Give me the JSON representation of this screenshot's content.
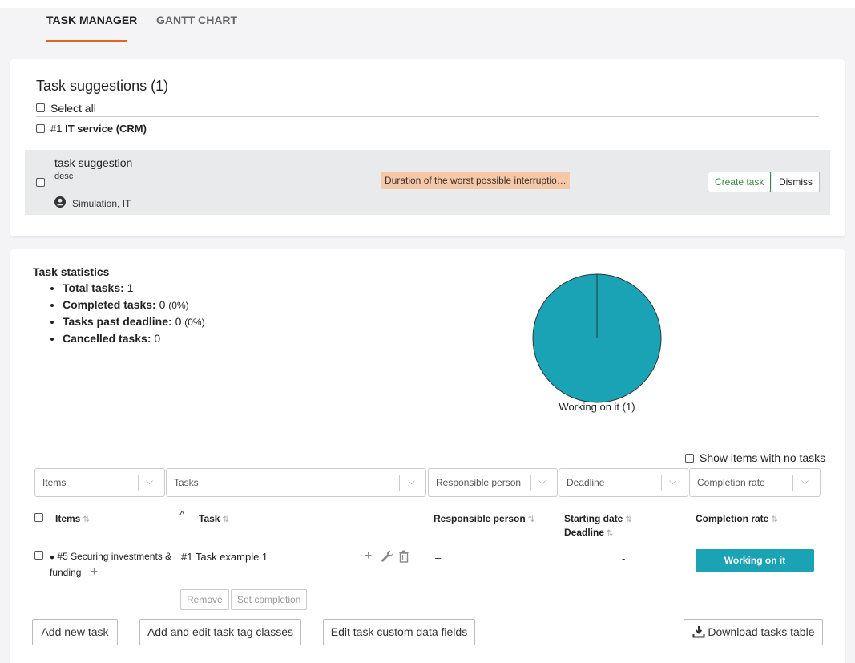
{
  "tabs": [
    {
      "label": "TASK MANAGER"
    },
    {
      "label": "GANTT CHART"
    }
  ],
  "suggestions": {
    "title": "Task suggestions (1)",
    "select_all": "Select all",
    "group_prefix": "#1",
    "group_name": "IT service (CRM)",
    "item": {
      "title": "task suggestion",
      "desc": "desc",
      "people": "Simulation, IT",
      "tag": "Duration of the worst possible interruptio…",
      "create_label": "Create task",
      "dismiss_label": "Dismiss"
    }
  },
  "stats": {
    "title": "Task statistics",
    "items": [
      {
        "label": "Total tasks:",
        "value": "1",
        "pct": ""
      },
      {
        "label": "Completed tasks:",
        "value": "0",
        "pct": "(0%)"
      },
      {
        "label": "Tasks past deadline:",
        "value": "0",
        "pct": "(0%)"
      },
      {
        "label": "Cancelled tasks:",
        "value": "0",
        "pct": ""
      }
    ],
    "pie_label": "Working on it (1)",
    "pie_color": "#1aa2b5"
  },
  "filters": {
    "show_empty": "Show items with no tasks",
    "items": "Items",
    "tasks": "Tasks",
    "responsible": "Responsible person",
    "deadline": "Deadline",
    "completion": "Completion rate"
  },
  "table": {
    "headers": {
      "items": "Items",
      "task": "Task",
      "responsible": "Responsible person",
      "starting": "Starting date",
      "deadline": "Deadline",
      "completion": "Completion rate"
    },
    "row": {
      "item_line1": "#5 Securing investments &",
      "item_line2": "funding",
      "task": "#1 Task example 1",
      "responsible": "–",
      "date": "-",
      "status": "Working on it",
      "status_color": "#1aa2b5"
    },
    "remove_label": "Remove",
    "set_completion_label": "Set completion"
  },
  "actions": {
    "add_task": "Add new task",
    "tag_classes": "Add and edit task tag classes",
    "custom_fields": "Edit task custom data fields",
    "download": "Download tasks table"
  },
  "accent_color": "#e0661b"
}
